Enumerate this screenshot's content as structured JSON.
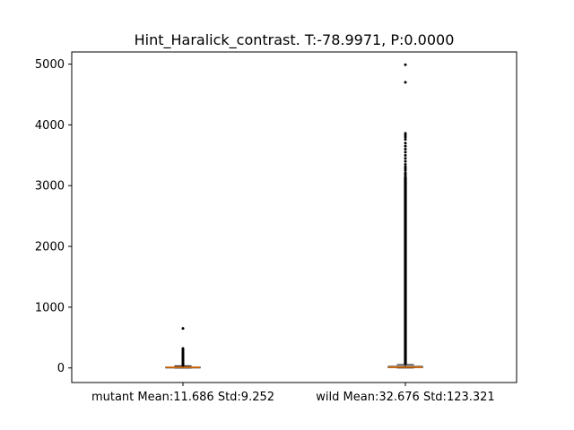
{
  "chart_data": {
    "type": "box",
    "title": "Hint_Haralick_contrast. T:-78.9971, P:0.0000",
    "xlabel": "",
    "ylabel": "",
    "ylim": [
      -240,
      5200
    ],
    "yticks": [
      0,
      1000,
      2000,
      3000,
      4000,
      5000
    ],
    "categories": [
      "mutant Mean:11.686 Std:9.252",
      "wild Mean:32.676 Std:123.321"
    ],
    "grid": false,
    "colors": {
      "box": "#000000",
      "median": "#ff7f0e",
      "flier": "#000000"
    },
    "series": [
      {
        "q1": 5,
        "median": 10,
        "q3": 15,
        "whisker_low": 0,
        "whisker_high": 35,
        "outliers": [
          40,
          50,
          60,
          70,
          80,
          90,
          100,
          110,
          120,
          130,
          140,
          150,
          160,
          175,
          190,
          205,
          220,
          240,
          260,
          280,
          300,
          320,
          650
        ]
      },
      {
        "q1": 5,
        "median": 12,
        "q3": 25,
        "whisker_low": 0,
        "whisker_high": 55,
        "outliers_range": [
          60,
          3150
        ],
        "outliers": [
          3170,
          3190,
          3210,
          3250,
          3280,
          3310,
          3350,
          3400,
          3450,
          3500,
          3550,
          3600,
          3650,
          3700,
          3760,
          3800,
          3830,
          3860,
          4700,
          4990
        ]
      }
    ]
  }
}
